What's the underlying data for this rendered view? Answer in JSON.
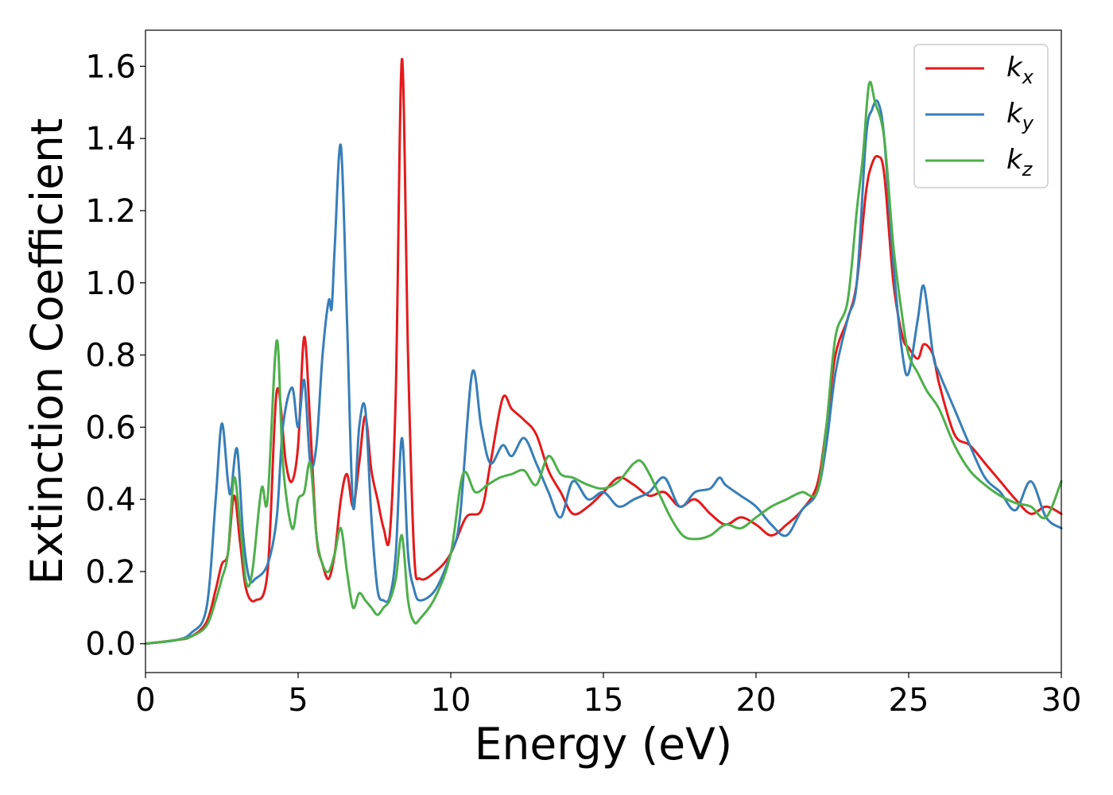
{
  "chart_data": {
    "type": "line",
    "title": "",
    "xlabel": "Energy (eV)",
    "ylabel": "Extinction Coefficient",
    "xlim": [
      0,
      30
    ],
    "ylim": [
      -0.08,
      1.7
    ],
    "xticks": [
      0,
      5,
      10,
      15,
      20,
      25,
      30
    ],
    "xtick_labels": [
      "0",
      "5",
      "10",
      "15",
      "20",
      "25",
      "30"
    ],
    "yticks": [
      0.0,
      0.2,
      0.4,
      0.6,
      0.8,
      1.0,
      1.2,
      1.4,
      1.6
    ],
    "ytick_labels": [
      "0.0",
      "0.2",
      "0.4",
      "0.6",
      "0.8",
      "1.0",
      "1.2",
      "1.4",
      "1.6"
    ],
    "grid": false,
    "legend_position": "top-right",
    "series": [
      {
        "name": "k_x",
        "label_main": "k",
        "label_sub": "x",
        "color": "#e41a1c",
        "x": [
          0,
          1,
          1.5,
          2,
          2.3,
          2.5,
          2.7,
          2.9,
          3.1,
          3.3,
          3.6,
          4.0,
          4.3,
          4.6,
          4.8,
          5.0,
          5.2,
          5.4,
          5.6,
          5.8,
          6.0,
          6.2,
          6.4,
          6.6,
          6.8,
          7.0,
          7.2,
          7.4,
          7.6,
          7.8,
          8.0,
          8.2,
          8.4,
          8.6,
          8.8,
          9.0,
          9.5,
          10.0,
          10.5,
          11.0,
          11.3,
          11.7,
          12.0,
          12.4,
          12.8,
          13.2,
          13.6,
          14.0,
          14.5,
          15.0,
          15.5,
          16.0,
          16.5,
          17.0,
          17.5,
          18.0,
          18.5,
          19.0,
          19.5,
          20.0,
          20.5,
          21.0,
          21.5,
          22.0,
          22.3,
          22.6,
          23.0,
          23.3,
          23.6,
          23.8,
          24.0,
          24.2,
          24.5,
          24.8,
          25.0,
          25.3,
          25.5,
          25.8,
          26.0,
          26.5,
          27.0,
          27.5,
          28.0,
          28.5,
          29.0,
          29.5,
          30.0
        ],
        "y": [
          0.0,
          0.01,
          0.02,
          0.06,
          0.15,
          0.22,
          0.25,
          0.41,
          0.28,
          0.15,
          0.12,
          0.2,
          0.7,
          0.5,
          0.45,
          0.55,
          0.85,
          0.6,
          0.3,
          0.22,
          0.18,
          0.25,
          0.4,
          0.47,
          0.38,
          0.5,
          0.63,
          0.48,
          0.4,
          0.32,
          0.3,
          0.7,
          1.62,
          0.8,
          0.25,
          0.18,
          0.2,
          0.25,
          0.35,
          0.37,
          0.5,
          0.68,
          0.65,
          0.62,
          0.58,
          0.48,
          0.42,
          0.36,
          0.38,
          0.42,
          0.46,
          0.44,
          0.41,
          0.42,
          0.38,
          0.4,
          0.36,
          0.33,
          0.35,
          0.33,
          0.3,
          0.33,
          0.37,
          0.44,
          0.6,
          0.8,
          0.9,
          1.0,
          1.25,
          1.33,
          1.35,
          1.3,
          1.0,
          0.85,
          0.82,
          0.79,
          0.83,
          0.8,
          0.72,
          0.58,
          0.55,
          0.5,
          0.45,
          0.4,
          0.36,
          0.38,
          0.36
        ]
      },
      {
        "name": "k_y",
        "label_main": "k",
        "label_sub": "y",
        "color": "#377eb8",
        "x": [
          0,
          1,
          1.5,
          2,
          2.3,
          2.5,
          2.7,
          2.8,
          3.0,
          3.2,
          3.4,
          3.6,
          4.0,
          4.3,
          4.5,
          4.8,
          5.0,
          5.2,
          5.4,
          5.6,
          5.8,
          6.0,
          6.1,
          6.2,
          6.4,
          6.6,
          6.8,
          7.0,
          7.2,
          7.4,
          7.6,
          7.8,
          8.0,
          8.2,
          8.4,
          8.6,
          8.8,
          9.0,
          9.5,
          10.0,
          10.3,
          10.7,
          11.0,
          11.3,
          11.7,
          12.0,
          12.4,
          12.8,
          13.2,
          13.6,
          14.0,
          14.5,
          15.0,
          15.5,
          16.0,
          16.5,
          17.0,
          17.5,
          18.0,
          18.5,
          18.8,
          19.0,
          19.5,
          20.0,
          20.5,
          21.0,
          21.5,
          22.0,
          22.3,
          22.6,
          23.0,
          23.3,
          23.6,
          23.8,
          24.0,
          24.2,
          24.5,
          24.8,
          25.0,
          25.3,
          25.5,
          25.8,
          26.0,
          26.5,
          27.0,
          27.5,
          28.0,
          28.5,
          29.0,
          29.5,
          30.0
        ],
        "y": [
          0.0,
          0.01,
          0.03,
          0.1,
          0.4,
          0.61,
          0.45,
          0.42,
          0.54,
          0.3,
          0.18,
          0.18,
          0.22,
          0.35,
          0.6,
          0.71,
          0.6,
          0.73,
          0.5,
          0.55,
          0.8,
          0.95,
          0.93,
          1.1,
          1.38,
          0.9,
          0.38,
          0.6,
          0.65,
          0.35,
          0.15,
          0.12,
          0.13,
          0.25,
          0.57,
          0.25,
          0.15,
          0.12,
          0.15,
          0.25,
          0.35,
          0.75,
          0.6,
          0.5,
          0.55,
          0.52,
          0.57,
          0.5,
          0.42,
          0.35,
          0.45,
          0.4,
          0.42,
          0.38,
          0.4,
          0.42,
          0.46,
          0.38,
          0.42,
          0.43,
          0.46,
          0.44,
          0.41,
          0.38,
          0.33,
          0.3,
          0.37,
          0.42,
          0.55,
          0.75,
          0.9,
          1.0,
          1.4,
          1.48,
          1.5,
          1.4,
          1.05,
          0.8,
          0.75,
          0.9,
          0.99,
          0.8,
          0.75,
          0.65,
          0.55,
          0.46,
          0.42,
          0.37,
          0.45,
          0.35,
          0.32
        ]
      },
      {
        "name": "k_z",
        "label_main": "k",
        "label_sub": "z",
        "color": "#4daf4a",
        "x": [
          0,
          1,
          1.5,
          2,
          2.3,
          2.5,
          2.7,
          2.9,
          3.1,
          3.3,
          3.5,
          3.8,
          4.0,
          4.3,
          4.5,
          4.8,
          5.0,
          5.2,
          5.4,
          5.6,
          5.8,
          6.0,
          6.2,
          6.4,
          6.6,
          6.8,
          7.0,
          7.2,
          7.4,
          7.6,
          7.8,
          8.0,
          8.2,
          8.4,
          8.6,
          8.8,
          9.0,
          9.5,
          10.0,
          10.4,
          10.8,
          11.2,
          11.6,
          12.0,
          12.4,
          12.8,
          13.2,
          13.6,
          14.0,
          14.5,
          15.0,
          15.5,
          16.0,
          16.3,
          16.8,
          17.2,
          17.6,
          18.0,
          18.5,
          19.0,
          19.5,
          20.0,
          20.5,
          21.0,
          21.5,
          22.0,
          22.3,
          22.6,
          23.0,
          23.3,
          23.5,
          23.7,
          23.9,
          24.2,
          24.5,
          24.8,
          25.0,
          25.3,
          25.6,
          26.0,
          26.5,
          27.0,
          27.5,
          28.0,
          28.5,
          29.0,
          29.5,
          30.0
        ],
        "y": [
          0.0,
          0.01,
          0.02,
          0.05,
          0.12,
          0.18,
          0.25,
          0.46,
          0.33,
          0.17,
          0.2,
          0.43,
          0.4,
          0.84,
          0.5,
          0.32,
          0.4,
          0.42,
          0.5,
          0.3,
          0.22,
          0.2,
          0.25,
          0.32,
          0.2,
          0.1,
          0.14,
          0.12,
          0.1,
          0.08,
          0.1,
          0.12,
          0.18,
          0.3,
          0.12,
          0.06,
          0.07,
          0.13,
          0.25,
          0.47,
          0.42,
          0.44,
          0.46,
          0.47,
          0.48,
          0.44,
          0.52,
          0.47,
          0.46,
          0.44,
          0.43,
          0.45,
          0.5,
          0.5,
          0.42,
          0.35,
          0.3,
          0.29,
          0.3,
          0.33,
          0.32,
          0.35,
          0.38,
          0.4,
          0.42,
          0.42,
          0.6,
          0.85,
          0.95,
          1.2,
          1.35,
          1.55,
          1.5,
          1.4,
          1.1,
          0.9,
          0.8,
          0.75,
          0.7,
          0.65,
          0.55,
          0.48,
          0.44,
          0.41,
          0.39,
          0.38,
          0.35,
          0.45
        ]
      }
    ]
  }
}
